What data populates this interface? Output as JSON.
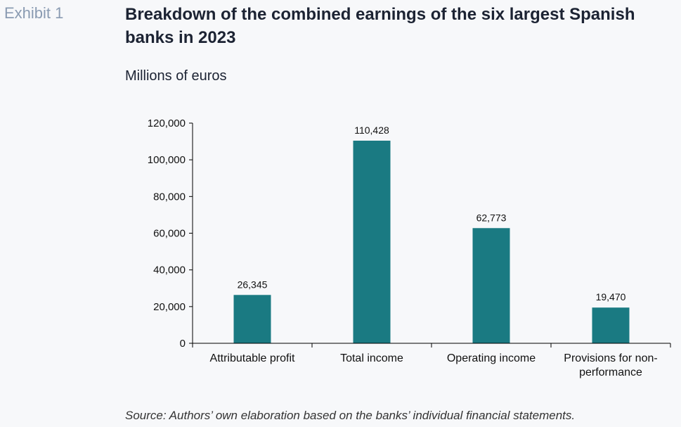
{
  "exhibit_label": "Exhibit 1",
  "title": "Breakdown of the combined earnings of the six largest Spanish banks in 2023",
  "subtitle": "Millions of euros",
  "source": "Source: Authors’ own elaboration based on the banks’ individual financial statements.",
  "colors": {
    "bar": "#1a7a82",
    "axis": "#000000",
    "background": "#f7f8fa"
  },
  "chart_data": {
    "type": "bar",
    "categories": [
      [
        "Attributable profit"
      ],
      [
        "Total income"
      ],
      [
        "Operating income"
      ],
      [
        "Provisions for non-",
        "performance"
      ]
    ],
    "values": [
      26345,
      110428,
      62773,
      19470
    ],
    "value_labels": [
      "26,345",
      "110,428",
      "62,773",
      "19,470"
    ],
    "yticks": [
      0,
      20000,
      40000,
      60000,
      80000,
      100000,
      120000
    ],
    "ytick_labels": [
      "0",
      "20,000",
      "40,000",
      "60,000",
      "80,000",
      "100,000",
      "120,000"
    ],
    "ylim": [
      0,
      120000
    ],
    "grid": false,
    "legend": "none"
  }
}
